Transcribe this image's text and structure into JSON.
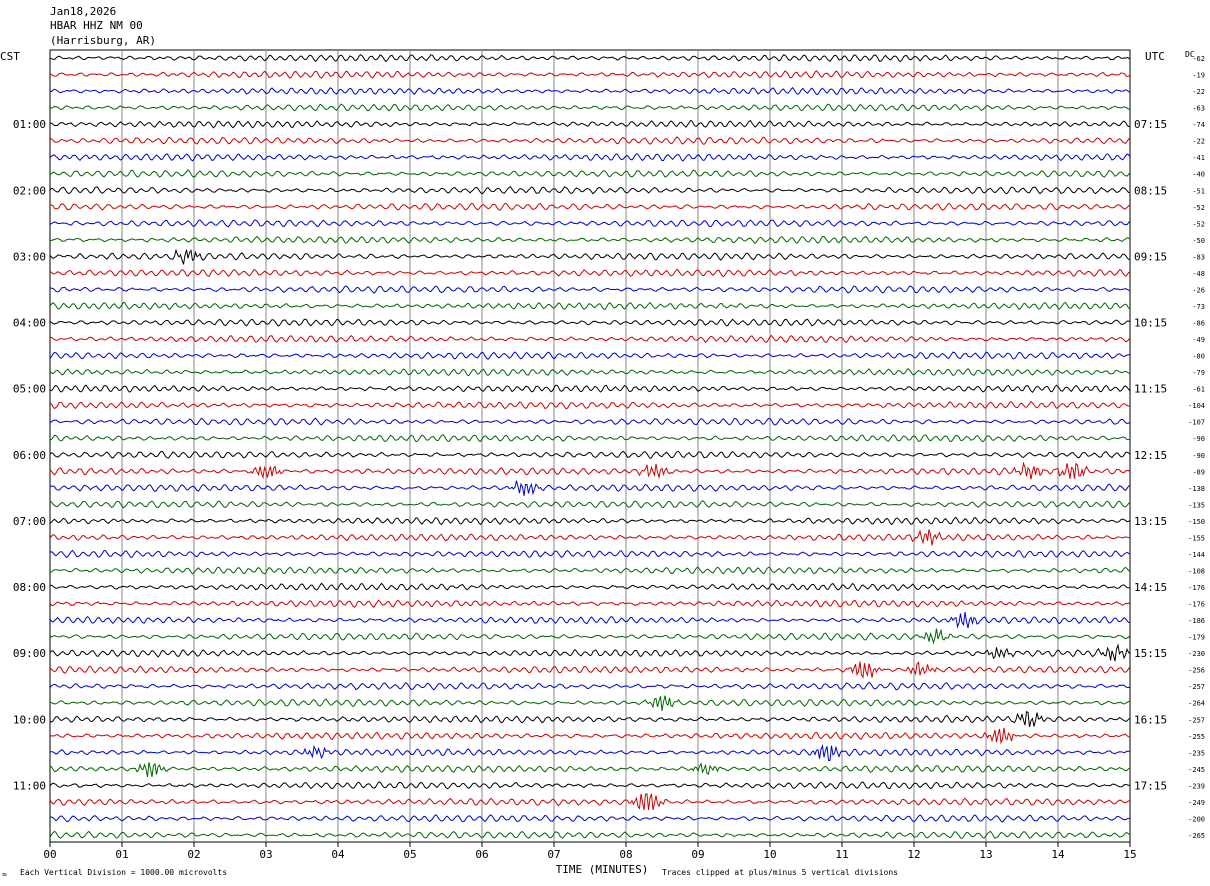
{
  "header": {
    "date": "Jan18,2026",
    "station": "HBAR HHZ NM 00",
    "location": "(Harrisburg, AR)"
  },
  "labels": {
    "left_tz": "CST",
    "right_tz": "UTC",
    "dc_label": "DC",
    "x_axis_title": "TIME (MINUTES)",
    "footer_left": "Each Vertical Division = 1000.00 microvolts",
    "footer_right": "Traces clipped at plus/minus 5 vertical divisions",
    "corner_mark": "≈"
  },
  "colors": {
    "trace_cycle": [
      "#000000",
      "#cc0000",
      "#0000cc",
      "#006600"
    ],
    "grid": "#888888",
    "frame": "#000000",
    "background": "#ffffff"
  },
  "chart_data": {
    "type": "line",
    "title": "HBAR HHZ NM 00",
    "xlabel": "TIME (MINUTES)",
    "ylabel": "",
    "xlim": [
      0,
      15
    ],
    "x_ticks": [
      "00",
      "01",
      "02",
      "03",
      "04",
      "05",
      "06",
      "07",
      "08",
      "09",
      "10",
      "11",
      "12",
      "13",
      "14",
      "15"
    ],
    "row_count": 48,
    "minutes_per_row": 15,
    "left_hour_labels": [
      "01:00",
      "02:00",
      "03:00",
      "04:00",
      "05:00",
      "06:00",
      "07:00",
      "08:00",
      "09:00",
      "10:00",
      "11:00"
    ],
    "right_hour_labels": [
      "07:15",
      "08:15",
      "09:15",
      "10:15",
      "11:15",
      "12:15",
      "13:15",
      "14:15",
      "15:15",
      "16:15",
      "17:15"
    ],
    "hour_label_row_interval": 4,
    "hour_label_first_row": 4,
    "dc_offsets": [
      -62,
      -19,
      -22,
      -63,
      -74,
      -22,
      -41,
      -40,
      -51,
      -52,
      -52,
      -50,
      -83,
      -48,
      -26,
      -73,
      -86,
      -49,
      -80,
      -79,
      -61,
      -104,
      -107,
      -90,
      -90,
      -89,
      -138,
      -135,
      -150,
      -155,
      -144,
      -108,
      -176,
      -176,
      -186,
      -179,
      -230,
      -256,
      -257,
      -264,
      -257,
      -255,
      -235,
      -245,
      -239,
      -249,
      -200,
      -265
    ],
    "events": [
      {
        "row": 12,
        "minute": 1.9,
        "amp": 2.0
      },
      {
        "row": 25,
        "minute": 3.0,
        "amp": 2.0
      },
      {
        "row": 25,
        "minute": 8.4,
        "amp": 2.2
      },
      {
        "row": 25,
        "minute": 13.6,
        "amp": 2.0
      },
      {
        "row": 25,
        "minute": 14.2,
        "amp": 2.4
      },
      {
        "row": 26,
        "minute": 6.6,
        "amp": 2.2
      },
      {
        "row": 29,
        "minute": 12.2,
        "amp": 2.2
      },
      {
        "row": 34,
        "minute": 12.7,
        "amp": 2.2
      },
      {
        "row": 35,
        "minute": 12.3,
        "amp": 1.8
      },
      {
        "row": 36,
        "minute": 13.2,
        "amp": 1.5
      },
      {
        "row": 36,
        "minute": 14.8,
        "amp": 2.0
      },
      {
        "row": 37,
        "minute": 11.3,
        "amp": 3.0
      },
      {
        "row": 37,
        "minute": 12.1,
        "amp": 1.8
      },
      {
        "row": 39,
        "minute": 8.5,
        "amp": 2.0
      },
      {
        "row": 40,
        "minute": 13.6,
        "amp": 2.4
      },
      {
        "row": 41,
        "minute": 13.2,
        "amp": 2.8
      },
      {
        "row": 42,
        "minute": 10.8,
        "amp": 2.8
      },
      {
        "row": 42,
        "minute": 3.7,
        "amp": 1.4
      },
      {
        "row": 43,
        "minute": 1.4,
        "amp": 2.6
      },
      {
        "row": 43,
        "minute": 9.1,
        "amp": 1.6
      },
      {
        "row": 45,
        "minute": 8.3,
        "amp": 3.6
      }
    ]
  }
}
